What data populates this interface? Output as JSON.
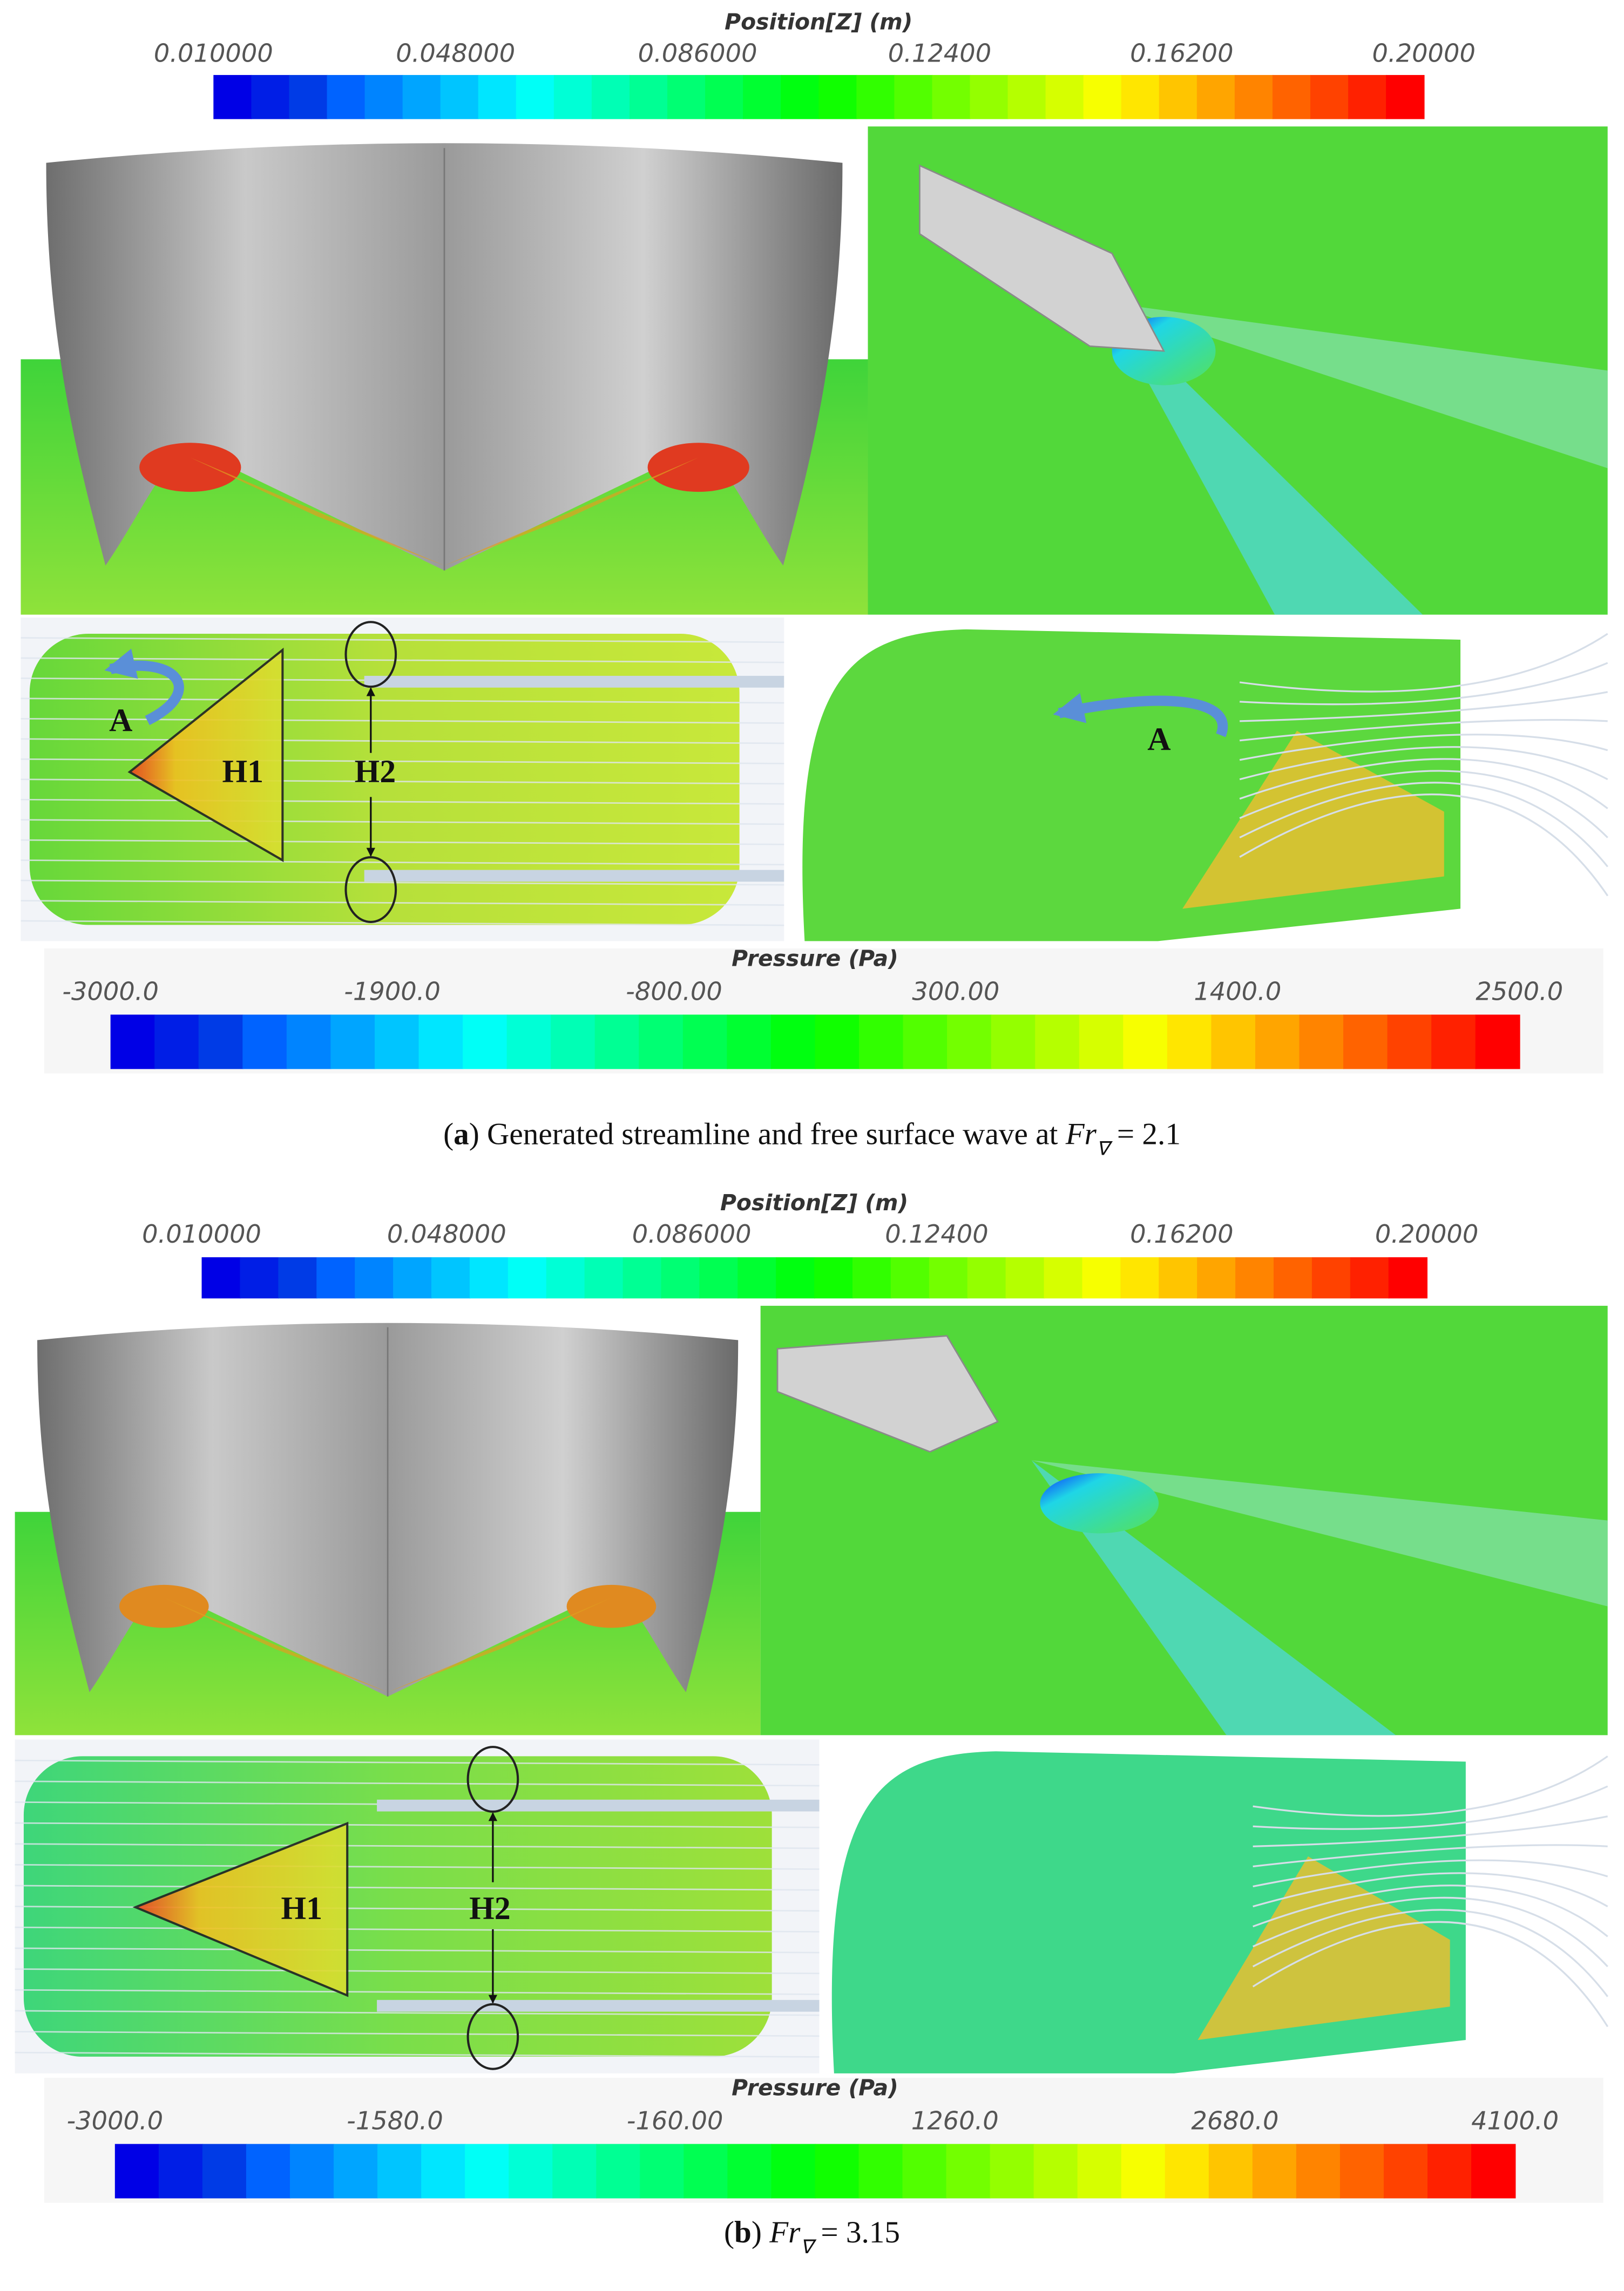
{
  "panels": [
    {
      "position_colorbar": {
        "title": "Position[Z] (m)",
        "ticks": [
          "0.010000",
          "0.048000",
          "0.086000",
          "0.12400",
          "0.16200",
          "0.20000"
        ]
      },
      "annotations": {
        "left": [
          "A",
          "H1",
          "H2"
        ],
        "right": [
          "A"
        ]
      },
      "pressure_colorbar": {
        "title": "Pressure (Pa)",
        "ticks": [
          "-3000.0",
          "-1900.0",
          "-800.00",
          "300.00",
          "1400.0",
          "2500.0"
        ]
      },
      "caption": [
        {
          "text": "("
        },
        {
          "text": "a",
          "style": "bold"
        },
        {
          "text": ") Generated streamline and free surface wave at "
        },
        {
          "text": "Fr",
          "style": "italic"
        },
        {
          "text": "∇",
          "style": "sub"
        },
        {
          "text": " = 2.1"
        }
      ]
    },
    {
      "position_colorbar": {
        "title": "Position[Z] (m)",
        "ticks": [
          "0.010000",
          "0.048000",
          "0.086000",
          "0.12400",
          "0.16200",
          "0.20000"
        ]
      },
      "annotations": {
        "left": [
          "H1",
          "H2"
        ]
      },
      "pressure_colorbar": {
        "title": "Pressure (Pa)",
        "ticks": [
          "-3000.0",
          "-1580.0",
          "-160.00",
          "1260.0",
          "2680.0",
          "4100.0"
        ]
      },
      "caption": [
        {
          "text": "("
        },
        {
          "text": "b",
          "style": "bold"
        },
        {
          "text": ") "
        },
        {
          "text": "Fr",
          "style": "italic"
        },
        {
          "text": "∇",
          "style": "sub"
        },
        {
          "text": " = 3.15"
        }
      ]
    }
  ]
}
